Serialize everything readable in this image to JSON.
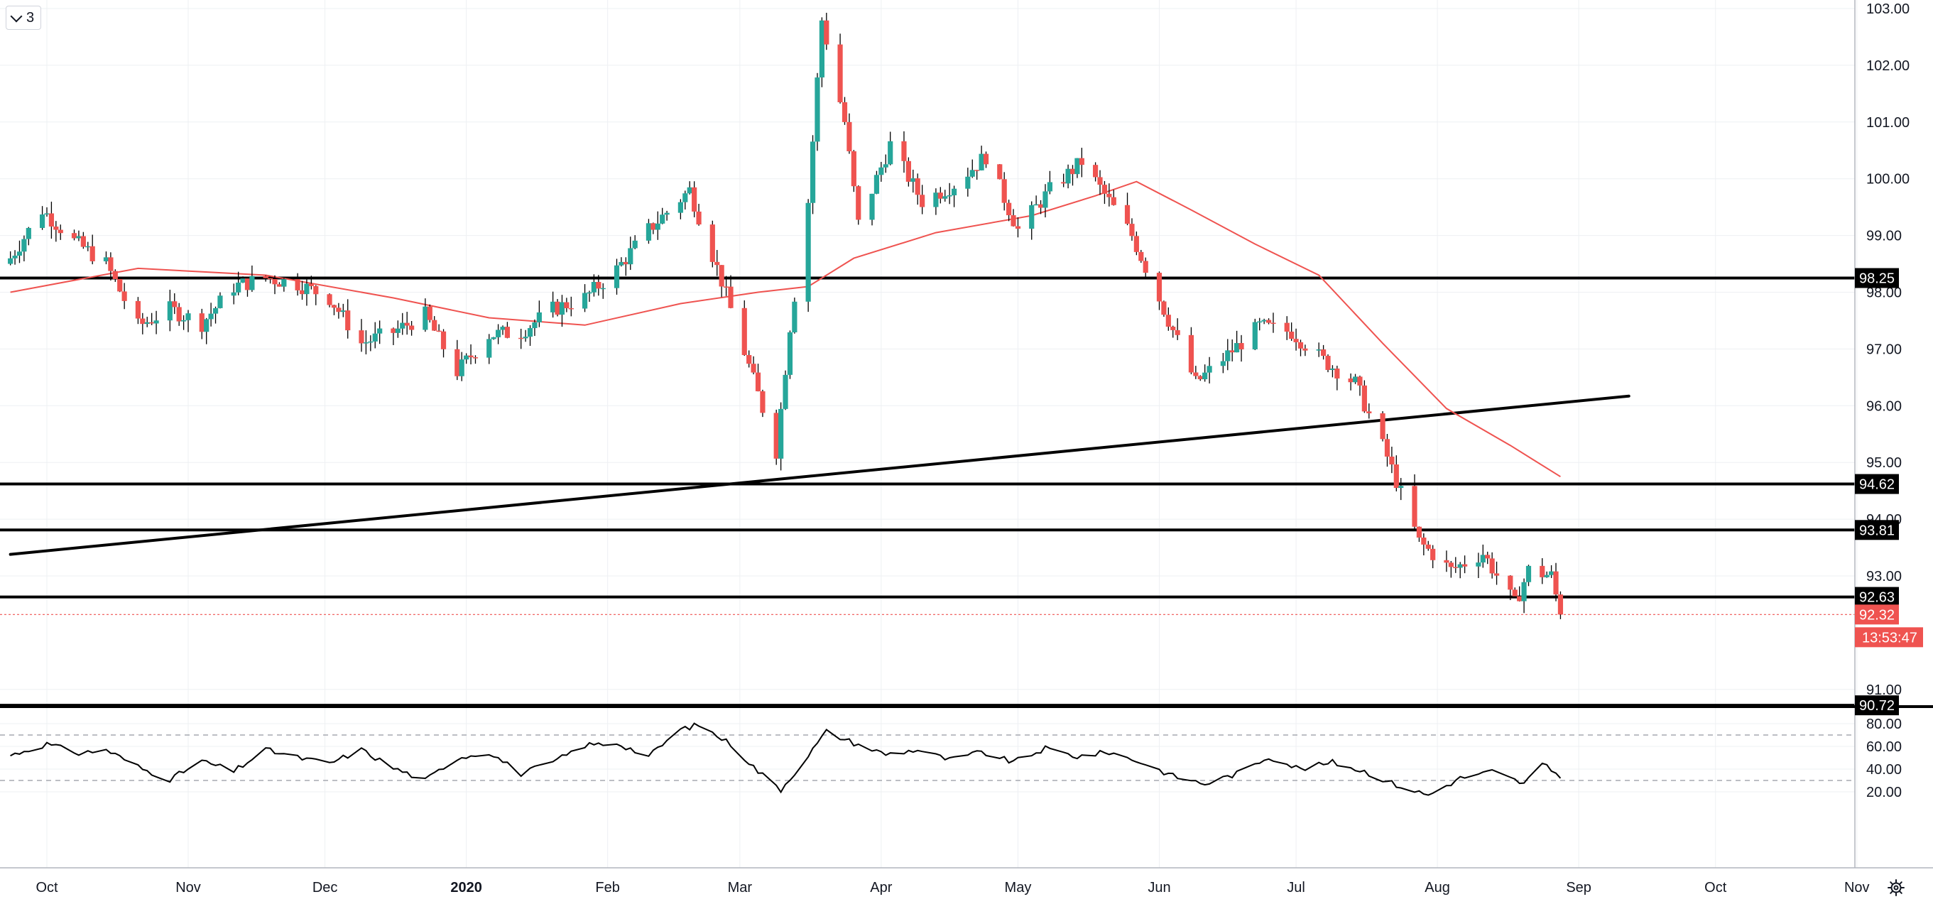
{
  "legend_widget": {
    "value": "3",
    "icon": "chevron-down-icon"
  },
  "settings": {
    "icon": "gear-icon"
  },
  "colors": {
    "up": "#26a69a",
    "down": "#ef5350",
    "ma": "#ef5350",
    "line": "#000000",
    "grid": "#eef0f3",
    "rsi": "#000000",
    "current_price": "#ef5350"
  },
  "price_axis": {
    "ticks": [
      "103.00",
      "102.00",
      "101.00",
      "100.00",
      "99.00",
      "98.00",
      "97.00",
      "96.00",
      "95.00",
      "94.00",
      "93.00",
      "91.00"
    ],
    "markers": [
      {
        "label": "98.25",
        "style": "black"
      },
      {
        "label": "94.62",
        "style": "black"
      },
      {
        "label": "93.81",
        "style": "black"
      },
      {
        "label": "92.63",
        "style": "black"
      },
      {
        "label": "92.32",
        "style": "red"
      },
      {
        "label": "90.72",
        "style": "black"
      }
    ],
    "countdown": "13:53:47"
  },
  "rsi_axis": {
    "ticks": [
      "80.00",
      "60.00",
      "40.00",
      "20.00"
    ]
  },
  "time_axis": {
    "labels": [
      "Oct",
      "Nov",
      "Dec",
      "2020",
      "Feb",
      "Mar",
      "Apr",
      "May",
      "Jun",
      "Jul",
      "Aug",
      "Sep",
      "Oct",
      "Nov"
    ]
  },
  "chart_data": [
    {
      "type": "candlestick",
      "title": "",
      "x_start": "2019-09-23",
      "x_end": "2020-11-02",
      "ylim": [
        90.5,
        103.1
      ],
      "horizontal_lines": [
        98.25,
        94.62,
        93.81,
        92.63,
        90.72
      ],
      "current_price": 92.32,
      "trendline": {
        "from": {
          "date": "2019-09-23",
          "value": 93.38
        },
        "to": {
          "date": "2020-09-12",
          "value": 96.17
        }
      },
      "anchors": [
        [
          "2019-09-23",
          98.6
        ],
        [
          "2019-09-30",
          99.45
        ],
        [
          "2019-10-07",
          98.9
        ],
        [
          "2019-10-14",
          98.5
        ],
        [
          "2019-10-21",
          97.4
        ],
        [
          "2019-10-28",
          97.7
        ],
        [
          "2019-11-04",
          97.45
        ],
        [
          "2019-11-11",
          98.1
        ],
        [
          "2019-11-18",
          98.25
        ],
        [
          "2019-11-25",
          98.15
        ],
        [
          "2019-12-02",
          97.9
        ],
        [
          "2019-12-09",
          97.1
        ],
        [
          "2019-12-16",
          97.3
        ],
        [
          "2019-12-23",
          97.6
        ],
        [
          "2019-12-30",
          96.6
        ],
        [
          "2020-01-06",
          97.25
        ],
        [
          "2020-01-13",
          97.3
        ],
        [
          "2020-01-20",
          97.7
        ],
        [
          "2020-01-27",
          97.9
        ],
        [
          "2020-02-03",
          98.4
        ],
        [
          "2020-02-10",
          99.1
        ],
        [
          "2020-02-19",
          99.8
        ],
        [
          "2020-02-26",
          98.2
        ],
        [
          "2020-03-03",
          96.7
        ],
        [
          "2020-03-09",
          95.2
        ],
        [
          "2020-03-12",
          97.4
        ],
        [
          "2020-03-16",
          99.6
        ],
        [
          "2020-03-19",
          102.8
        ],
        [
          "2020-03-24",
          101.0
        ],
        [
          "2020-03-27",
          99.2
        ],
        [
          "2020-04-03",
          100.6
        ],
        [
          "2020-04-10",
          99.6
        ],
        [
          "2020-04-17",
          99.9
        ],
        [
          "2020-04-24",
          100.4
        ],
        [
          "2020-05-01",
          99.1
        ],
        [
          "2020-05-08",
          99.8
        ],
        [
          "2020-05-15",
          100.3
        ],
        [
          "2020-05-21",
          99.6
        ],
        [
          "2020-05-26",
          99.0
        ],
        [
          "2020-06-02",
          97.7
        ],
        [
          "2020-06-09",
          96.4
        ],
        [
          "2020-06-16",
          96.9
        ],
        [
          "2020-06-23",
          97.4
        ],
        [
          "2020-06-30",
          97.3
        ],
        [
          "2020-07-07",
          96.8
        ],
        [
          "2020-07-14",
          96.4
        ],
        [
          "2020-07-21",
          95.1
        ],
        [
          "2020-07-28",
          93.6
        ],
        [
          "2020-08-04",
          93.1
        ],
        [
          "2020-08-11",
          93.4
        ],
        [
          "2020-08-18",
          92.5
        ],
        [
          "2020-08-21",
          93.1
        ],
        [
          "2020-08-26",
          93.0
        ],
        [
          "2020-08-28",
          92.32
        ]
      ],
      "moving_average": [
        [
          "2019-09-23",
          98.0
        ],
        [
          "2019-10-21",
          98.42
        ],
        [
          "2019-11-18",
          98.3
        ],
        [
          "2019-12-16",
          97.9
        ],
        [
          "2020-01-06",
          97.55
        ],
        [
          "2020-01-27",
          97.42
        ],
        [
          "2020-02-17",
          97.8
        ],
        [
          "2020-03-05",
          98.0
        ],
        [
          "2020-03-16",
          98.1
        ],
        [
          "2020-03-26",
          98.6
        ],
        [
          "2020-04-13",
          99.05
        ],
        [
          "2020-05-04",
          99.35
        ],
        [
          "2020-05-18",
          99.7
        ],
        [
          "2020-05-27",
          99.95
        ],
        [
          "2020-06-08",
          99.45
        ],
        [
          "2020-06-22",
          98.85
        ],
        [
          "2020-07-06",
          98.3
        ],
        [
          "2020-07-20",
          97.1
        ],
        [
          "2020-08-03",
          95.95
        ],
        [
          "2020-08-17",
          95.3
        ],
        [
          "2020-08-28",
          94.75
        ]
      ]
    },
    {
      "type": "line",
      "title": "",
      "ylim": [
        14.3,
        84.7
      ],
      "levels": [
        70,
        30
      ],
      "anchors": [
        [
          "2019-09-23",
          52
        ],
        [
          "2019-09-26",
          56
        ],
        [
          "2019-10-01",
          62
        ],
        [
          "2019-10-08",
          54
        ],
        [
          "2019-10-14",
          57
        ],
        [
          "2019-10-22",
          40
        ],
        [
          "2019-10-28",
          31
        ],
        [
          "2019-11-04",
          47
        ],
        [
          "2019-11-11",
          38
        ],
        [
          "2019-11-18",
          57
        ],
        [
          "2019-11-25",
          50
        ],
        [
          "2019-12-02",
          45
        ],
        [
          "2019-12-09",
          57
        ],
        [
          "2019-12-16",
          41
        ],
        [
          "2019-12-23",
          30
        ],
        [
          "2019-12-30",
          50
        ],
        [
          "2020-01-06",
          55
        ],
        [
          "2020-01-13",
          36
        ],
        [
          "2020-01-20",
          46
        ],
        [
          "2020-01-27",
          61
        ],
        [
          "2020-02-03",
          63
        ],
        [
          "2020-02-10",
          51
        ],
        [
          "2020-02-17",
          75
        ],
        [
          "2020-02-21",
          79
        ],
        [
          "2020-02-28",
          62
        ],
        [
          "2020-03-05",
          38
        ],
        [
          "2020-03-10",
          22
        ],
        [
          "2020-03-16",
          52
        ],
        [
          "2020-03-20",
          73
        ],
        [
          "2020-03-26",
          63
        ],
        [
          "2020-04-02",
          53
        ],
        [
          "2020-04-09",
          57
        ],
        [
          "2020-04-16",
          48
        ],
        [
          "2020-04-23",
          55
        ],
        [
          "2020-04-30",
          46
        ],
        [
          "2020-05-07",
          58
        ],
        [
          "2020-05-14",
          51
        ],
        [
          "2020-05-21",
          55
        ],
        [
          "2020-05-28",
          46
        ],
        [
          "2020-06-04",
          34
        ],
        [
          "2020-06-11",
          27
        ],
        [
          "2020-06-18",
          36
        ],
        [
          "2020-06-25",
          51
        ],
        [
          "2020-07-02",
          40
        ],
        [
          "2020-07-09",
          46
        ],
        [
          "2020-07-16",
          38
        ],
        [
          "2020-07-23",
          26
        ],
        [
          "2020-07-30",
          17
        ],
        [
          "2020-08-06",
          32
        ],
        [
          "2020-08-13",
          38
        ],
        [
          "2020-08-20",
          27
        ],
        [
          "2020-08-24",
          44
        ],
        [
          "2020-08-28",
          34
        ]
      ]
    }
  ]
}
